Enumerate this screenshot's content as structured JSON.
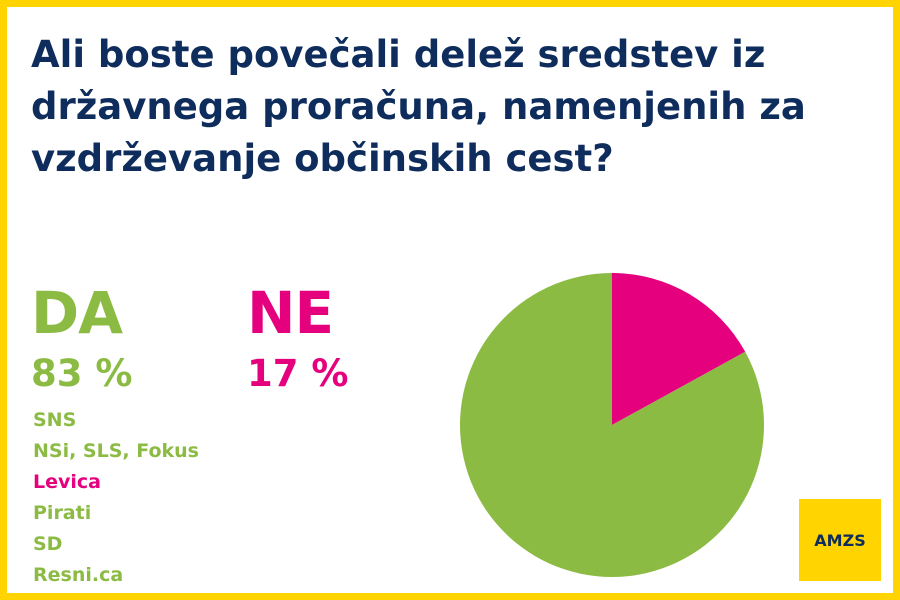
{
  "title": "Ali boste povečali delež sredstev iz državnega proračuna, namenjenih za vzdrževanje občinskih cest?",
  "colors": {
    "frame": "#ffd400",
    "title": "#0e2d5c",
    "yes": "#8cbb44",
    "no": "#e5007e",
    "logo_bg": "#ffd400",
    "logo_text": "#0e2d5c"
  },
  "answers": {
    "yes": {
      "label": "DA",
      "percent_text": "83 %"
    },
    "no": {
      "label": "NE",
      "percent_text": "17 %"
    }
  },
  "parties": [
    {
      "name": "SNS",
      "answer": "yes"
    },
    {
      "name": "NSi, SLS, Fokus",
      "answer": "yes"
    },
    {
      "name": "Levica",
      "answer": "no"
    },
    {
      "name": "Pirati",
      "answer": "yes"
    },
    {
      "name": "SD",
      "answer": "yes"
    },
    {
      "name": "Resni.ca",
      "answer": "yes"
    }
  ],
  "logo": {
    "text": "AMZS"
  },
  "chart_data": {
    "type": "pie",
    "categories": [
      "DA",
      "NE"
    ],
    "values": [
      83,
      17
    ],
    "start": "12 o'clock",
    "direction": "clockwise",
    "slice_order": [
      "NE",
      "DA"
    ],
    "legend": "none"
  }
}
